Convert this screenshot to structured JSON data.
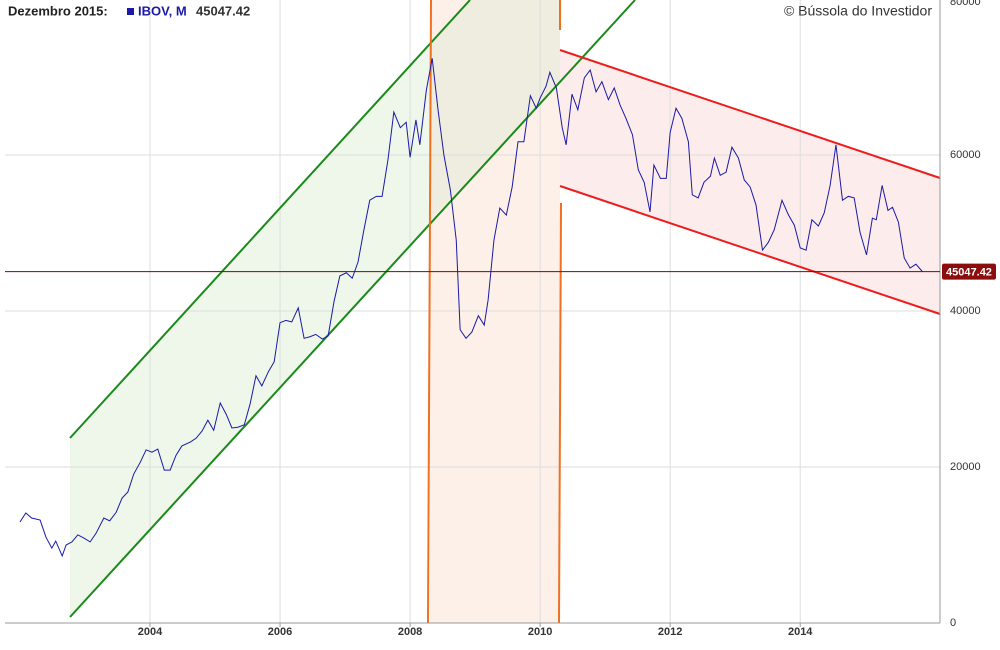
{
  "chart_data": {
    "type": "line",
    "title": "Dezembro 2015:",
    "credit": "© Bússola do Investidor",
    "current_value": 45047.42,
    "xlim": [
      2001.77,
      2016.15
    ],
    "xticks": [
      2004,
      2006,
      2008,
      2010,
      2012,
      2014
    ],
    "ylim": [
      0,
      80000
    ],
    "yticks": [
      0,
      20000,
      40000,
      60000,
      80000
    ],
    "grid": true,
    "series": [
      {
        "name": "IBOV, M",
        "color": "#1a1aa6",
        "x": [
          2002.0,
          2002.09,
          2002.18,
          2002.31,
          2002.4,
          2002.49,
          2002.55,
          2002.65,
          2002.71,
          2002.8,
          2002.89,
          2002.98,
          2003.08,
          2003.17,
          2003.29,
          2003.38,
          2003.48,
          2003.57,
          2003.66,
          2003.75,
          2003.85,
          2003.94,
          2004.03,
          2004.12,
          2004.22,
          2004.31,
          2004.4,
          2004.49,
          2004.62,
          2004.71,
          2004.8,
          2004.89,
          2004.98,
          2005.08,
          2005.17,
          2005.26,
          2005.35,
          2005.45,
          2005.54,
          2005.63,
          2005.72,
          2005.82,
          2005.91,
          2006.0,
          2006.09,
          2006.18,
          2006.28,
          2006.37,
          2006.46,
          2006.55,
          2006.65,
          2006.74,
          2006.83,
          2006.92,
          2007.02,
          2007.11,
          2007.2,
          2007.29,
          2007.38,
          2007.48,
          2007.57,
          2007.66,
          2007.75,
          2007.85,
          2007.94,
          2008.0,
          2008.09,
          2008.15,
          2008.25,
          2008.34,
          2008.43,
          2008.52,
          2008.62,
          2008.71,
          2008.77,
          2008.86,
          2008.95,
          2009.05,
          2009.14,
          2009.2,
          2009.29,
          2009.38,
          2009.48,
          2009.57,
          2009.66,
          2009.75,
          2009.85,
          2009.94,
          2010.0,
          2010.09,
          2010.15,
          2010.25,
          2010.34,
          2010.4,
          2010.49,
          2010.58,
          2010.68,
          2010.77,
          2010.86,
          2010.95,
          2011.05,
          2011.14,
          2011.23,
          2011.32,
          2011.42,
          2011.51,
          2011.6,
          2011.69,
          2011.75,
          2011.85,
          2011.94,
          2012.0,
          2012.09,
          2012.18,
          2012.28,
          2012.34,
          2012.43,
          2012.52,
          2012.62,
          2012.68,
          2012.77,
          2012.86,
          2012.95,
          2013.05,
          2013.14,
          2013.23,
          2013.32,
          2013.42,
          2013.51,
          2013.6,
          2013.72,
          2013.82,
          2013.91,
          2014.0,
          2014.09,
          2014.18,
          2014.28,
          2014.37,
          2014.46,
          2014.55,
          2014.65,
          2014.74,
          2014.83,
          2014.92,
          2015.02,
          2015.11,
          2015.17,
          2015.26,
          2015.35,
          2015.42,
          2015.51,
          2015.6,
          2015.69,
          2015.78,
          2015.88
        ],
        "values": [
          12950,
          14100,
          13460,
          13200,
          11000,
          9600,
          10500,
          8600,
          10000,
          10400,
          11300,
          10900,
          10400,
          11500,
          13460,
          13100,
          14200,
          16000,
          16800,
          19100,
          20600,
          22200,
          21900,
          22300,
          19600,
          19600,
          21500,
          22700,
          23200,
          23700,
          24600,
          26000,
          24700,
          28200,
          26800,
          25000,
          25100,
          25400,
          28100,
          31700,
          30400,
          32200,
          33500,
          38500,
          38800,
          38600,
          40400,
          36500,
          36700,
          37000,
          36400,
          36800,
          41200,
          44500,
          44900,
          44200,
          46300,
          50400,
          54200,
          54700,
          54700,
          59400,
          65500,
          63500,
          64200,
          59700,
          64500,
          61300,
          68300,
          72400,
          65800,
          60000,
          55500,
          49100,
          37600,
          36500,
          37300,
          39400,
          38200,
          41400,
          49100,
          53200,
          52300,
          55900,
          61700,
          61700,
          67600,
          66000,
          67300,
          68800,
          70600,
          68600,
          63500,
          61300,
          67800,
          65800,
          69900,
          70900,
          68100,
          69400,
          67100,
          68600,
          66400,
          64700,
          62600,
          58100,
          56500,
          52700,
          58700,
          57000,
          57000,
          62900,
          66000,
          64700,
          61700,
          54900,
          54500,
          56500,
          57300,
          59600,
          57400,
          57800,
          61000,
          59600,
          56800,
          55900,
          53600,
          47800,
          48800,
          50400,
          54200,
          52300,
          51000,
          48100,
          47800,
          51700,
          50900,
          52600,
          56100,
          61300,
          54200,
          54700,
          54500,
          50100,
          47200,
          51900,
          51700,
          56100,
          52900,
          53300,
          51400,
          46800,
          45500,
          46000,
          45047.42
        ]
      }
    ]
  }
}
